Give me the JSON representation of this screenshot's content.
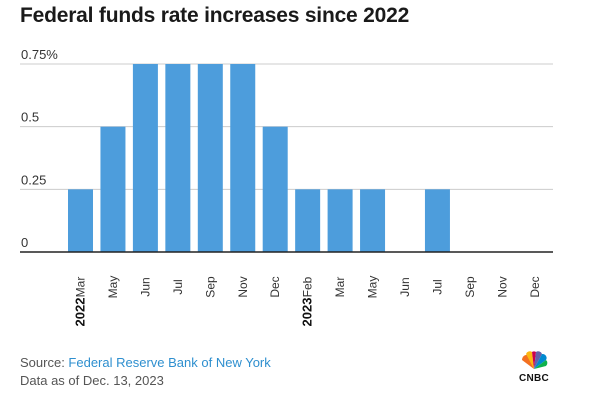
{
  "title": "Federal funds rate increases since 2022",
  "source_prefix": "Source: ",
  "source_name": "Federal Reserve Bank of New York",
  "as_of": "Data as of Dec. 13, 2023",
  "logo_text": "CNBC",
  "colors": {
    "bar": "#4d9ddc",
    "grid": "#cccccc",
    "axis": "#222222"
  },
  "chart_data": {
    "type": "bar",
    "title": "Federal funds rate increases since 2022",
    "xlabel": "",
    "ylabel": "",
    "ylim": [
      0,
      0.75
    ],
    "yticks": [
      {
        "value": 0,
        "label": "0"
      },
      {
        "value": 0.25,
        "label": "0.25"
      },
      {
        "value": 0.5,
        "label": "0.5"
      },
      {
        "value": 0.75,
        "label": "0.75%"
      }
    ],
    "grid": true,
    "categories": [
      "Mar",
      "May",
      "Jun",
      "Jul",
      "Sep",
      "Nov",
      "Dec",
      "Feb",
      "Mar",
      "May",
      "Jun",
      "Jul",
      "Sep",
      "Nov",
      "Dec"
    ],
    "values": [
      0.25,
      0.5,
      0.75,
      0.75,
      0.75,
      0.75,
      0.5,
      0.25,
      0.25,
      0.25,
      0,
      0.25,
      0,
      0,
      0
    ],
    "year_labels": [
      {
        "label": "2022",
        "category_index": 0
      },
      {
        "label": "2023",
        "category_index": 7
      }
    ]
  }
}
